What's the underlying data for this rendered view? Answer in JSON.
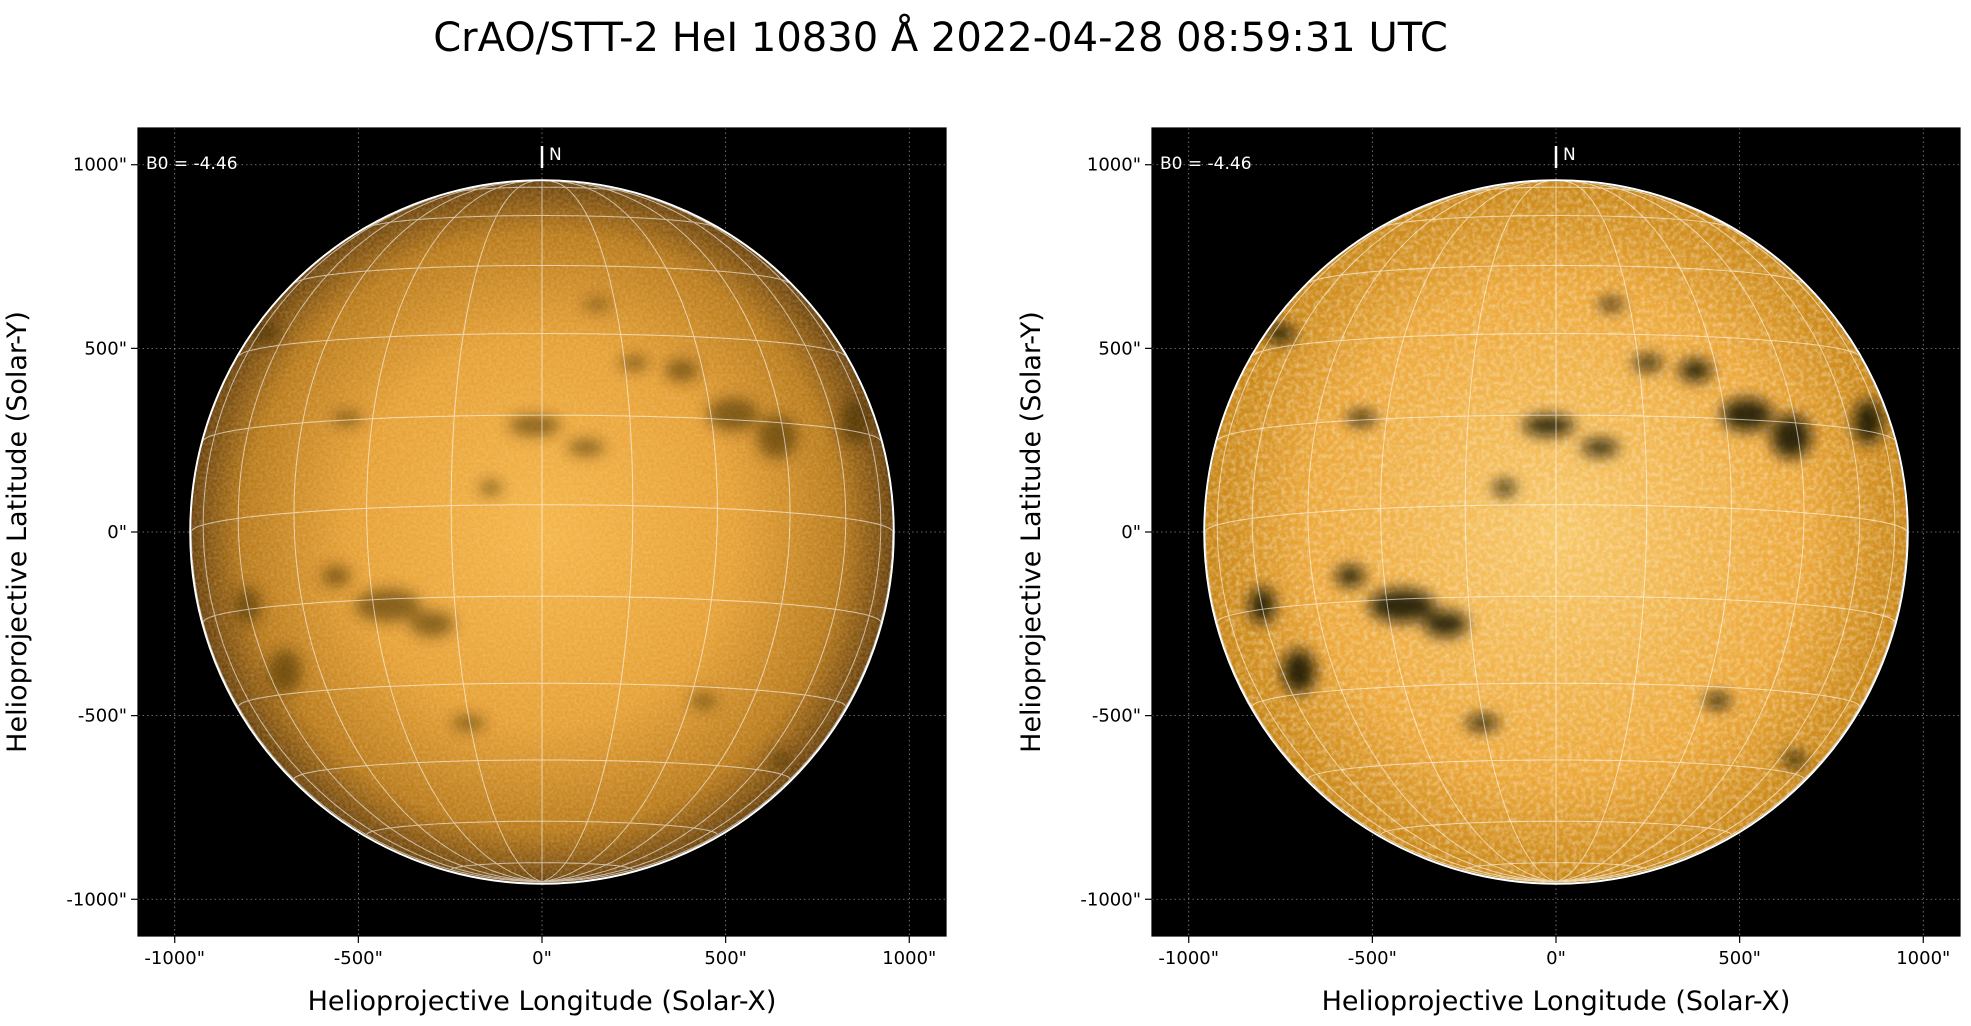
{
  "figure": {
    "title": "CrAO/STT-2 HeI 10830 Å 2022-04-28 08:59:31 UTC"
  },
  "panels": [
    {
      "id": "left",
      "style": "raw",
      "b0_label": "B0 = -4.46",
      "north_label": "N",
      "xlabel": "Helioprojective Longitude (Solar-X)",
      "ylabel": "Helioprojective Latitude (Solar-Y)",
      "xticks": [
        "-1000\"",
        "-500\"",
        "0\"",
        "500\"",
        "1000\""
      ],
      "yticks": [
        "1000\"",
        "500\"",
        "0\"",
        "-500\"",
        "-1000\""
      ]
    },
    {
      "id": "right",
      "style": "enhanced",
      "b0_label": "B0 = -4.46",
      "north_label": "N",
      "xlabel": "Helioprojective Longitude (Solar-X)",
      "ylabel": "Helioprojective Latitude (Solar-Y)",
      "xticks": [
        "-1000\"",
        "-500\"",
        "0\"",
        "500\"",
        "1000\""
      ],
      "yticks": [
        "1000\"",
        "500\"",
        "0\"",
        "-500\"",
        "-1000\""
      ]
    }
  ],
  "colors": {
    "background": "#000000",
    "disk_raw_center": "#f0a93a",
    "disk_raw_limb": "#7a4e10",
    "disk_enhanced_center": "#f5c060",
    "disk_enhanced_limb": "#b77712",
    "grid": "#ffffff",
    "limb": "#ffffff"
  }
}
